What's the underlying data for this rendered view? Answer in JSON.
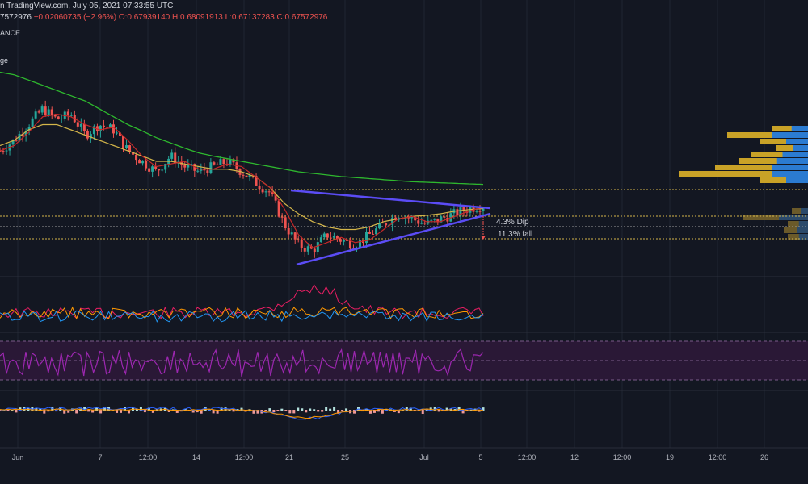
{
  "header": {
    "line1": "n TradingView.com, July 05, 2021 07:33:55 UTC",
    "line2_prefix": "7572976",
    "change": "−0.02060735 (−2.96%)",
    "ohlc": "O:0.67939140 H:0.68091913 L:0.67137283 C:0.67572976",
    "exchange": "ANCE",
    "indicator_label": "ge"
  },
  "annotations": {
    "dip": "4.3% Dip",
    "fall": "11.3% fall"
  },
  "colors": {
    "background": "#131722",
    "up": "#26a69a",
    "down": "#ef5350",
    "ema_fast": "#c62828",
    "ema_slow": "#d4b64a",
    "ema_long": "#2eb82e",
    "triangle": "#5b4cf5",
    "rsi": "#9c27b0"
  },
  "chart_data": {
    "type": "line",
    "xlabel": "",
    "ylabel": "",
    "x_ticks": [
      "Jun",
      "7",
      "12:00",
      "14",
      "12:00",
      "21",
      "25",
      "Jul",
      "5",
      "12:00",
      "12",
      "12:00",
      "19",
      "12:00",
      "26"
    ],
    "series": [
      {
        "values": [
          0.78,
          0.8,
          0.83,
          0.86,
          0.84,
          0.85,
          0.81,
          0.83,
          0.82,
          0.78,
          0.76,
          0.74,
          0.77,
          0.75,
          0.74,
          0.75,
          0.76,
          0.74,
          0.72,
          0.7,
          0.64,
          0.6,
          0.59,
          0.62,
          0.61,
          0.6,
          0.62,
          0.64,
          0.66,
          0.65,
          0.64,
          0.65,
          0.66,
          0.67,
          0.676
        ]
      },
      {
        "values": [
          0.79,
          0.8,
          0.82,
          0.83,
          0.83,
          0.82,
          0.81,
          0.8,
          0.79,
          0.78,
          0.77,
          0.76,
          0.76,
          0.755,
          0.75,
          0.745,
          0.745,
          0.74,
          0.73,
          0.71,
          0.68,
          0.66,
          0.645,
          0.635,
          0.63,
          0.63,
          0.635,
          0.645,
          0.65,
          0.655,
          0.657,
          0.66,
          0.665,
          0.668,
          0.67
        ]
      },
      {
        "values": [
          0.93,
          0.925,
          0.915,
          0.905,
          0.895,
          0.885,
          0.875,
          0.86,
          0.845,
          0.83,
          0.818,
          0.805,
          0.795,
          0.785,
          0.776,
          0.77,
          0.765,
          0.76,
          0.755,
          0.75,
          0.745,
          0.74,
          0.737,
          0.734,
          0.731,
          0.729,
          0.727,
          0.725,
          0.723,
          0.721,
          0.72,
          0.719,
          0.718,
          0.717,
          0.716
        ]
      }
    ]
  }
}
